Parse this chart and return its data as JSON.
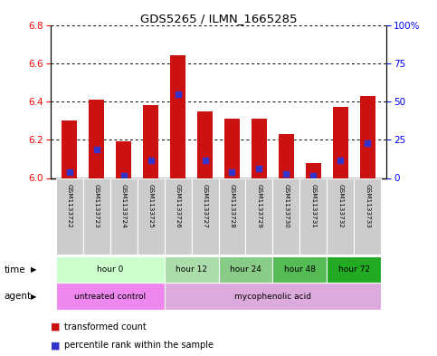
{
  "title": "GDS5265 / ILMN_1665285",
  "samples": [
    "GSM1133722",
    "GSM1133723",
    "GSM1133724",
    "GSM1133725",
    "GSM1133726",
    "GSM1133727",
    "GSM1133728",
    "GSM1133729",
    "GSM1133730",
    "GSM1133731",
    "GSM1133732",
    "GSM1133733"
  ],
  "bar_values": [
    6.3,
    6.41,
    6.19,
    6.38,
    6.64,
    6.35,
    6.31,
    6.31,
    6.23,
    6.08,
    6.37,
    6.43
  ],
  "blue_dot_values": [
    6.03,
    6.15,
    6.01,
    6.09,
    6.44,
    6.09,
    6.03,
    6.05,
    6.02,
    6.01,
    6.09,
    6.18
  ],
  "ymin": 6.0,
  "ymax": 6.8,
  "yticks_left": [
    6.0,
    6.2,
    6.4,
    6.6,
    6.8
  ],
  "yticks_right": [
    0,
    25,
    50,
    75,
    100
  ],
  "bar_color": "#cc1111",
  "blue_color": "#3333cc",
  "bar_bottom": 6.0,
  "time_groups": [
    {
      "label": "hour 0",
      "start": 0,
      "end": 4,
      "color": "#ccffcc"
    },
    {
      "label": "hour 12",
      "start": 4,
      "end": 6,
      "color": "#aaddaa"
    },
    {
      "label": "hour 24",
      "start": 6,
      "end": 8,
      "color": "#88cc88"
    },
    {
      "label": "hour 48",
      "start": 8,
      "end": 10,
      "color": "#55bb55"
    },
    {
      "label": "hour 72",
      "start": 10,
      "end": 12,
      "color": "#22aa22"
    }
  ],
  "agent_groups": [
    {
      "label": "untreated control",
      "start": 0,
      "end": 4,
      "color": "#ee88ee"
    },
    {
      "label": "mycophenolic acid",
      "start": 4,
      "end": 12,
      "color": "#ddaadd"
    }
  ],
  "sample_box_color": "#cccccc",
  "legend_items": [
    {
      "color": "#cc1111",
      "label": "transformed count"
    },
    {
      "color": "#3333cc",
      "label": "percentile rank within the sample"
    }
  ]
}
